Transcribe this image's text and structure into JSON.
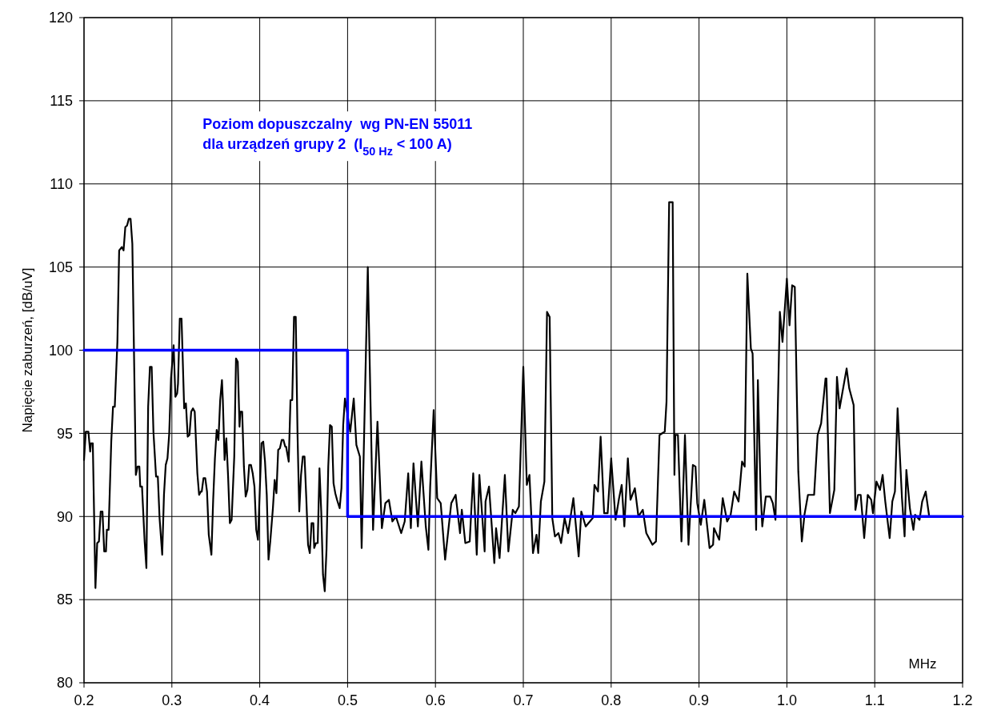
{
  "chart_data": {
    "type": "line",
    "xlabel": "MHz",
    "ylabel": "Napięcie zaburzeń,  [dB/uV]",
    "annotations": [
      "Poziom dopuszczalny  wg PN-EN 55011",
      "dla urządzeń grupy 2  (I$_{50 Hz}$ < 100 A)"
    ],
    "xlim": [
      0.2,
      1.2
    ],
    "xticks": [
      {
        "value": 0.2,
        "label": "0.2"
      },
      {
        "value": 0.3,
        "label": "0.3"
      },
      {
        "value": 0.4,
        "label": "0.4"
      },
      {
        "value": 0.5,
        "label": "0.5"
      },
      {
        "value": 0.6,
        "label": "0.6"
      },
      {
        "value": 0.7,
        "label": "0.7"
      },
      {
        "value": 0.8,
        "label": "0.8"
      },
      {
        "value": 0.9,
        "label": "0.9"
      },
      {
        "value": 1.0,
        "label": "1.0"
      },
      {
        "value": 1.1,
        "label": "1.1"
      },
      {
        "value": 1.2,
        "label": "1.2"
      }
    ],
    "ylim": [
      80,
      120
    ],
    "yticks": [
      80,
      85,
      90,
      95,
      100,
      105,
      110,
      115,
      120
    ],
    "grid": true,
    "marker": "none",
    "series": [
      {
        "color": "#000000",
        "x": [
          0.2,
          0.202,
          0.205,
          0.207,
          0.208,
          0.21,
          0.213,
          0.215,
          0.217,
          0.219,
          0.221,
          0.223,
          0.225,
          0.226,
          0.228,
          0.231,
          0.233,
          0.235,
          0.238,
          0.24,
          0.243,
          0.245,
          0.247,
          0.249,
          0.251,
          0.253,
          0.255,
          0.259,
          0.261,
          0.263,
          0.264,
          0.266,
          0.269,
          0.271,
          0.273,
          0.275,
          0.277,
          0.279,
          0.282,
          0.284,
          0.286,
          0.289,
          0.291,
          0.293,
          0.295,
          0.297,
          0.299,
          0.302,
          0.304,
          0.306,
          0.307,
          0.309,
          0.311,
          0.314,
          0.316,
          0.318,
          0.32,
          0.322,
          0.324,
          0.326,
          0.329,
          0.331,
          0.333,
          0.334,
          0.336,
          0.338,
          0.34,
          0.342,
          0.345,
          0.347,
          0.349,
          0.351,
          0.353,
          0.355,
          0.357,
          0.358,
          0.36,
          0.362,
          0.364,
          0.366,
          0.368,
          0.371,
          0.373,
          0.375,
          0.377,
          0.378,
          0.38,
          0.382,
          0.384,
          0.386,
          0.388,
          0.39,
          0.392,
          0.394,
          0.396,
          0.398,
          0.4,
          0.402,
          0.404,
          0.406,
          0.408,
          0.41,
          0.412,
          0.415,
          0.417,
          0.419,
          0.421,
          0.423,
          0.425,
          0.427,
          0.429,
          0.43,
          0.433,
          0.435,
          0.437,
          0.439,
          0.441,
          0.443,
          0.445,
          0.447,
          0.449,
          0.451,
          0.453,
          0.455,
          0.457,
          0.459,
          0.461,
          0.462,
          0.464,
          0.466,
          0.468,
          0.47,
          0.472,
          0.474,
          0.476,
          0.478,
          0.48,
          0.482,
          0.484,
          0.486,
          0.488,
          0.491,
          0.493,
          0.495,
          0.497,
          0.503,
          0.507,
          0.51,
          0.514,
          0.516,
          0.523,
          0.529,
          0.534,
          0.539,
          0.543,
          0.547,
          0.551,
          0.555,
          0.561,
          0.565,
          0.569,
          0.572,
          0.575,
          0.58,
          0.584,
          0.589,
          0.592,
          0.594,
          0.598,
          0.602,
          0.606,
          0.611,
          0.618,
          0.623,
          0.628,
          0.63,
          0.634,
          0.639,
          0.643,
          0.647,
          0.65,
          0.656,
          0.657,
          0.661,
          0.667,
          0.669,
          0.673,
          0.679,
          0.683,
          0.688,
          0.691,
          0.695,
          0.7,
          0.704,
          0.707,
          0.711,
          0.715,
          0.717,
          0.72,
          0.724,
          0.727,
          0.73,
          0.733,
          0.736,
          0.74,
          0.743,
          0.747,
          0.751,
          0.757,
          0.763,
          0.766,
          0.771,
          0.779,
          0.781,
          0.785,
          0.788,
          0.792,
          0.796,
          0.8,
          0.805,
          0.809,
          0.812,
          0.815,
          0.819,
          0.822,
          0.827,
          0.831,
          0.836,
          0.84,
          0.847,
          0.851,
          0.855,
          0.861,
          0.863,
          0.866,
          0.87,
          0.872,
          0.873,
          0.876,
          0.88,
          0.884,
          0.888,
          0.893,
          0.896,
          0.898,
          0.902,
          0.906,
          0.912,
          0.916,
          0.917,
          0.923,
          0.927,
          0.932,
          0.936,
          0.94,
          0.945,
          0.949,
          0.952,
          0.955,
          0.959,
          0.961,
          0.965,
          0.967,
          0.97,
          0.972,
          0.976,
          0.981,
          0.984,
          0.987,
          0.992,
          0.995,
          1.0,
          1.003,
          1.006,
          1.009,
          1.013,
          1.017,
          1.02,
          1.024,
          1.031,
          1.035,
          1.039,
          1.044,
          1.045,
          1.049,
          1.054,
          1.057,
          1.06,
          1.068,
          1.071,
          1.076,
          1.078,
          1.081,
          1.084,
          1.088,
          1.092,
          1.096,
          1.098,
          1.102,
          1.106,
          1.109,
          1.112,
          1.117,
          1.12,
          1.123,
          1.126,
          1.131,
          1.134,
          1.136,
          1.14,
          1.144,
          1.146,
          1.151,
          1.154,
          1.158,
          1.162
        ],
        "values": [
          93.4,
          95.1,
          95.1,
          93.9,
          94.4,
          94.4,
          85.7,
          88.4,
          88.5,
          90.3,
          90.3,
          87.9,
          87.9,
          89.2,
          89.2,
          94.5,
          96.6,
          96.6,
          100.5,
          106.0,
          106.2,
          106.0,
          107.4,
          107.5,
          107.9,
          107.9,
          106.4,
          92.5,
          93.0,
          93.0,
          91.8,
          91.8,
          88.5,
          86.9,
          96.6,
          99.0,
          99.0,
          95.1,
          92.4,
          92.4,
          89.9,
          87.7,
          91.3,
          93.1,
          93.5,
          95.0,
          98.3,
          100.3,
          97.2,
          97.4,
          98.0,
          101.9,
          101.9,
          96.5,
          96.8,
          94.8,
          94.9,
          96.3,
          96.5,
          96.3,
          92.6,
          91.3,
          91.5,
          91.5,
          92.3,
          92.3,
          91.5,
          88.9,
          87.7,
          91.0,
          93.5,
          95.2,
          94.6,
          97.0,
          98.2,
          97.0,
          93.4,
          94.7,
          92.4,
          89.6,
          89.8,
          93.6,
          99.5,
          99.3,
          95.4,
          96.3,
          96.3,
          93.0,
          91.2,
          91.6,
          93.1,
          93.1,
          92.6,
          91.8,
          89.2,
          88.6,
          91.5,
          94.4,
          94.5,
          93.3,
          91.3,
          87.4,
          88.5,
          90.5,
          92.2,
          91.4,
          94.0,
          94.1,
          94.6,
          94.6,
          94.2,
          94.2,
          93.3,
          97.0,
          97.0,
          102.0,
          102.0,
          95.0,
          90.3,
          92.5,
          93.6,
          93.6,
          91.1,
          88.3,
          87.8,
          89.6,
          89.6,
          88.1,
          88.4,
          88.4,
          92.9,
          90.3,
          86.5,
          85.5,
          88.0,
          93.0,
          95.5,
          95.4,
          92.0,
          91.4,
          91.0,
          90.5,
          91.7,
          95.5,
          97.1,
          95.1,
          97.1,
          94.3,
          93.6,
          88.1,
          105.0,
          89.2,
          95.7,
          89.3,
          90.8,
          91.0,
          89.7,
          90.0,
          89.0,
          89.7,
          92.6,
          89.3,
          93.2,
          89.4,
          93.3,
          89.4,
          88.0,
          91.8,
          96.4,
          91.1,
          90.8,
          87.4,
          90.8,
          91.3,
          89.0,
          90.4,
          88.4,
          88.5,
          92.6,
          87.7,
          92.5,
          87.9,
          90.9,
          91.8,
          87.2,
          89.3,
          87.5,
          92.5,
          87.9,
          90.4,
          90.2,
          90.6,
          99.0,
          91.9,
          92.5,
          87.8,
          88.9,
          87.8,
          90.9,
          92.1,
          102.3,
          102.0,
          89.9,
          88.8,
          89.0,
          88.4,
          89.9,
          89.0,
          91.1,
          87.6,
          90.3,
          89.4,
          89.9,
          91.9,
          91.5,
          94.8,
          90.2,
          90.2,
          93.5,
          89.8,
          91.1,
          91.9,
          89.4,
          93.5,
          91.0,
          91.7,
          90.0,
          90.4,
          89.0,
          88.3,
          88.5,
          94.9,
          95.1,
          96.9,
          108.9,
          108.9,
          92.5,
          94.9,
          94.9,
          88.5,
          94.9,
          88.3,
          93.1,
          93.0,
          90.8,
          89.5,
          91.0,
          88.1,
          88.3,
          89.3,
          88.6,
          91.1,
          89.7,
          90.1,
          91.5,
          90.9,
          93.3,
          93.0,
          104.6,
          100.1,
          99.8,
          89.2,
          98.2,
          91.6,
          89.4,
          91.2,
          91.2,
          90.8,
          89.8,
          102.3,
          100.5,
          104.3,
          101.5,
          103.9,
          103.8,
          92.7,
          88.5,
          90.1,
          91.3,
          91.3,
          94.9,
          95.6,
          98.3,
          98.3,
          90.2,
          91.6,
          98.4,
          96.5,
          98.9,
          97.7,
          96.7,
          90.4,
          91.3,
          91.3,
          88.7,
          91.3,
          91.0,
          90.2,
          92.1,
          91.6,
          92.5,
          90.9,
          88.7,
          90.9,
          91.5,
          96.5,
          91.1,
          88.8,
          92.8,
          90.5,
          89.2,
          90.1,
          89.8,
          90.9,
          91.5,
          90.0
        ]
      },
      {
        "color": "#0000ff",
        "x": [
          0.2,
          0.5,
          0.5,
          1.2
        ],
        "values": [
          100,
          100,
          90,
          90
        ]
      }
    ]
  }
}
